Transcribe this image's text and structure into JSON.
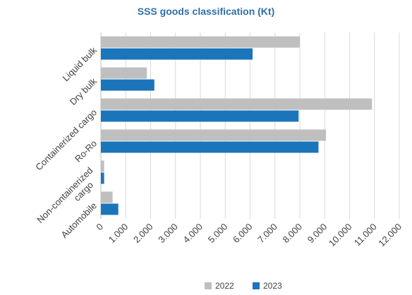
{
  "chart_data": {
    "type": "bar",
    "orientation": "horizontal",
    "title": "SSS goods classification (Kt)",
    "categories": [
      "Liquid bulk",
      "Dry bulk",
      "Containerized cargo",
      "Ro-Ro",
      "Non-containerized cargo",
      "Automobile"
    ],
    "category_label_lines": [
      [
        "Liquid bulk"
      ],
      [
        "Dry bulk"
      ],
      [
        "Containerized cargo"
      ],
      [
        "Ro-Ro"
      ],
      [
        "Non-containerized",
        "cargo"
      ],
      [
        "Automobile"
      ]
    ],
    "series": [
      {
        "name": "2022",
        "color": "#bfbfbf",
        "values": [
          8000,
          1850,
          10900,
          9050,
          130,
          470
        ]
      },
      {
        "name": "2023",
        "color": "#1b75bb",
        "values": [
          6100,
          2150,
          7950,
          8750,
          130,
          700
        ]
      }
    ],
    "xlim": [
      0,
      12000
    ],
    "x_ticks": [
      0,
      1000,
      2000,
      3000,
      4000,
      5000,
      6000,
      7000,
      8000,
      9000,
      10000,
      11000,
      12000
    ],
    "x_tick_labels": [
      "0",
      "1.000",
      "2.000",
      "3.000",
      "4.000",
      "5.000",
      "6.000",
      "7.000",
      "8.000",
      "9.000",
      "10.000",
      "11.000",
      "12.000"
    ],
    "grid": true,
    "legend_position": "bottom"
  }
}
